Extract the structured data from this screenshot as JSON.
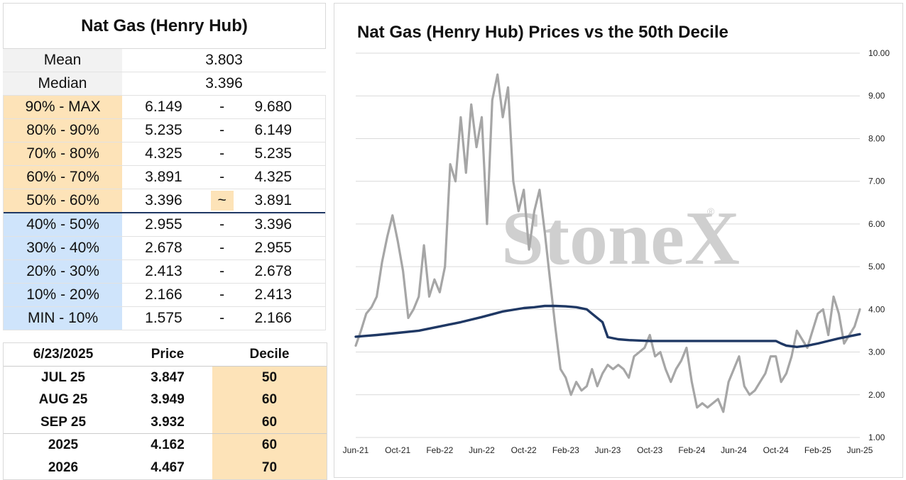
{
  "table": {
    "title": "Nat Gas (Henry Hub)",
    "mean_label": "Mean",
    "mean_value": "3.803",
    "median_label": "Median",
    "median_value": "3.396",
    "deciles": [
      {
        "label": "90% - MAX",
        "low": "6.149",
        "sep": "-",
        "high": "9.680",
        "zone": "upper"
      },
      {
        "label": "80% - 90%",
        "low": "5.235",
        "sep": "-",
        "high": "6.149",
        "zone": "upper"
      },
      {
        "label": "70% - 80%",
        "low": "4.325",
        "sep": "-",
        "high": "5.235",
        "zone": "upper"
      },
      {
        "label": "60% - 70%",
        "low": "3.891",
        "sep": "-",
        "high": "4.325",
        "zone": "upper"
      },
      {
        "label": "50% - 60%",
        "low": "3.396",
        "sep": "~",
        "high": "3.891",
        "zone": "upper",
        "current": true
      },
      {
        "label": "40% - 50%",
        "low": "2.955",
        "sep": "-",
        "high": "3.396",
        "zone": "lower"
      },
      {
        "label": "30% - 40%",
        "low": "2.678",
        "sep": "-",
        "high": "2.955",
        "zone": "lower"
      },
      {
        "label": "20% - 30%",
        "low": "2.413",
        "sep": "-",
        "high": "2.678",
        "zone": "lower"
      },
      {
        "label": "10% - 20%",
        "low": "2.166",
        "sep": "-",
        "high": "2.413",
        "zone": "lower"
      },
      {
        "label": "MIN - 10%",
        "low": "1.575",
        "sep": "-",
        "high": "2.166",
        "zone": "lower"
      }
    ]
  },
  "futures": {
    "date": "6/23/2025",
    "price_header": "Price",
    "decile_header": "Decile",
    "rows": [
      {
        "contract": "JUL 25",
        "price": "3.847",
        "decile": "50"
      },
      {
        "contract": "AUG 25",
        "price": "3.949",
        "decile": "60"
      },
      {
        "contract": "SEP 25",
        "price": "3.932",
        "decile": "60"
      },
      {
        "contract": "2025",
        "price": "4.162",
        "decile": "60"
      },
      {
        "contract": "2026",
        "price": "4.467",
        "decile": "70"
      }
    ]
  },
  "watermark": "StoneX",
  "colors": {
    "upper_zone": "#fde3b8",
    "lower_zone": "#cfe4fb",
    "price_line": "#a6a6a6",
    "decile_line": "#1f3864"
  },
  "chart_data": {
    "type": "line",
    "title": "Nat Gas (Henry Hub) Prices vs the 50th Decile",
    "ylim": [
      1.0,
      10.0
    ],
    "y_ticks": [
      "1.00",
      "2.00",
      "3.00",
      "4.00",
      "5.00",
      "6.00",
      "7.00",
      "8.00",
      "9.00",
      "10.00"
    ],
    "x_ticks": [
      "Jun-21",
      "Oct-21",
      "Feb-22",
      "Jun-22",
      "Oct-22",
      "Feb-23",
      "Jun-23",
      "Oct-23",
      "Feb-24",
      "Jun-24",
      "Oct-24",
      "Feb-25",
      "Jun-25"
    ],
    "x_tick_months": [
      0,
      4,
      8,
      12,
      16,
      20,
      24,
      28,
      32,
      36,
      40,
      44,
      48
    ],
    "grid": "horizontal",
    "legend": "none",
    "series": [
      {
        "color": "#a6a6a6",
        "x_months": [
          0,
          0.5,
          1,
          1.5,
          2,
          2.5,
          3,
          3.5,
          4,
          4.5,
          5,
          5.5,
          6,
          6.5,
          7,
          7.5,
          8,
          8.5,
          9,
          9.5,
          10,
          10.5,
          11,
          11.5,
          12,
          12.5,
          13,
          13.5,
          14,
          14.5,
          15,
          15.5,
          16,
          16.5,
          17,
          17.5,
          18,
          18.5,
          19,
          19.5,
          20,
          20.5,
          21,
          21.5,
          22,
          22.5,
          23,
          23.5,
          24,
          24.5,
          25,
          25.5,
          26,
          26.5,
          27,
          27.5,
          28,
          28.5,
          29,
          29.5,
          30,
          30.5,
          31,
          31.5,
          32,
          32.5,
          33,
          33.5,
          34,
          34.5,
          35,
          35.5,
          36,
          36.5,
          37,
          37.5,
          38,
          38.5,
          39,
          39.5,
          40,
          40.5,
          41,
          41.5,
          42,
          42.5,
          43,
          43.5,
          44,
          44.5,
          45,
          45.5,
          46,
          46.5,
          47,
          47.5,
          48
        ],
        "values": [
          3.15,
          3.5,
          3.9,
          4.05,
          4.3,
          5.1,
          5.7,
          6.2,
          5.6,
          4.9,
          3.8,
          4.0,
          4.3,
          5.5,
          4.3,
          4.7,
          4.4,
          5.0,
          7.4,
          7.0,
          8.5,
          7.2,
          8.8,
          7.8,
          8.5,
          6.0,
          8.9,
          9.5,
          8.5,
          9.2,
          7.0,
          6.3,
          6.8,
          5.4,
          6.3,
          6.8,
          5.8,
          4.7,
          3.6,
          2.6,
          2.4,
          2.0,
          2.3,
          2.1,
          2.2,
          2.6,
          2.2,
          2.5,
          2.7,
          2.6,
          2.7,
          2.6,
          2.4,
          2.9,
          3.0,
          3.1,
          3.4,
          2.9,
          3.0,
          2.6,
          2.3,
          2.6,
          2.8,
          3.1,
          2.3,
          1.7,
          1.8,
          1.7,
          1.8,
          1.9,
          1.6,
          2.3,
          2.6,
          2.9,
          2.2,
          2.0,
          2.1,
          2.3,
          2.5,
          2.9,
          2.9,
          2.3,
          2.5,
          2.9,
          3.5,
          3.3,
          3.1,
          3.5,
          3.9,
          4.0,
          3.4,
          4.3,
          3.9,
          3.2,
          3.4,
          3.6,
          4.0
        ]
      },
      {
        "color": "#1f3864",
        "x_months": [
          0,
          2,
          4,
          6,
          8,
          10,
          12,
          14,
          16,
          17,
          18,
          19,
          20,
          21,
          22,
          22.5,
          23,
          23.5,
          24,
          25,
          26,
          27,
          28,
          29,
          30,
          31,
          32,
          33,
          34,
          35,
          36,
          37,
          38,
          39,
          40,
          40.5,
          41,
          42,
          43,
          44,
          45,
          46,
          47,
          48
        ],
        "values": [
          3.36,
          3.4,
          3.45,
          3.5,
          3.6,
          3.7,
          3.82,
          3.95,
          4.03,
          4.05,
          4.08,
          4.08,
          4.07,
          4.05,
          4.0,
          3.9,
          3.8,
          3.7,
          3.35,
          3.3,
          3.28,
          3.27,
          3.26,
          3.26,
          3.26,
          3.26,
          3.26,
          3.26,
          3.26,
          3.26,
          3.26,
          3.26,
          3.26,
          3.26,
          3.26,
          3.2,
          3.15,
          3.12,
          3.15,
          3.2,
          3.26,
          3.32,
          3.37,
          3.42
        ]
      }
    ]
  }
}
